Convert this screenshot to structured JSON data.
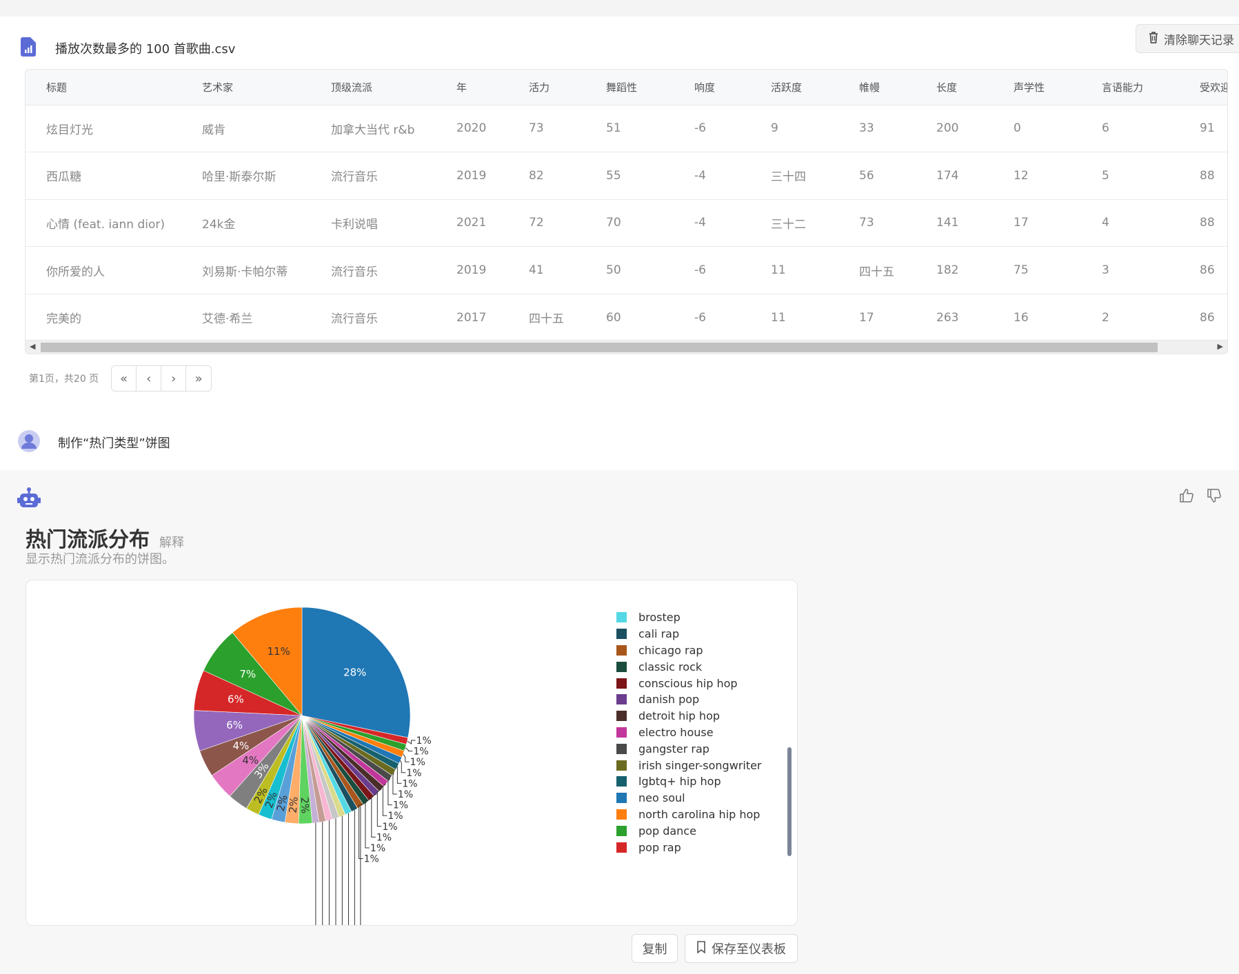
{
  "header": {
    "file_name": "播放次数最多的 100 首歌曲.csv",
    "clear_label": "清除聊天记录"
  },
  "table": {
    "columns": [
      "标题",
      "艺术家",
      "顶级流派",
      "年",
      "活力",
      "舞蹈性",
      "响度",
      "活跃度",
      "帷幔",
      "长度",
      "声学性",
      "言语能力",
      "受欢迎"
    ],
    "rows": [
      [
        "炫目灯光",
        "威肯",
        "加拿大当代 r&b",
        "2020",
        "73",
        "51",
        "-6",
        "9",
        "33",
        "200",
        "0",
        "6",
        "91"
      ],
      [
        "西瓜糖",
        "哈里·斯泰尔斯",
        "流行音乐",
        "2019",
        "82",
        "55",
        "-4",
        "三十四",
        "56",
        "174",
        "12",
        "5",
        "88"
      ],
      [
        "心情 (feat. iann dior)",
        "24k金",
        "卡利说唱",
        "2021",
        "72",
        "70",
        "-4",
        "三十二",
        "73",
        "141",
        "17",
        "4",
        "88"
      ],
      [
        "你所爱的人",
        "刘易斯·卡帕尔蒂",
        "流行音乐",
        "2019",
        "41",
        "50",
        "-6",
        "11",
        "四十五",
        "182",
        "75",
        "3",
        "86"
      ],
      [
        "完美的",
        "艾德·希兰",
        "流行音乐",
        "2017",
        "四十五",
        "60",
        "-6",
        "11",
        "17",
        "263",
        "16",
        "2",
        "86"
      ]
    ]
  },
  "pager": {
    "text": "第1页，共20 页"
  },
  "user": {
    "message": "制作“热门类型”饼图"
  },
  "chart": {
    "title": "热门流派分布",
    "explain": "解释",
    "description": "显示热门流派分布的饼图。",
    "copy_label": "复制",
    "save_label": "保存至仪表板"
  },
  "chart_data": {
    "type": "pie",
    "title": "热门流派分布",
    "slices": [
      {
        "label": "28%",
        "value": 28,
        "color": "#1f77b4"
      },
      {
        "label": "1%",
        "value": 1,
        "color": "#d62728"
      },
      {
        "label": "1%",
        "value": 1,
        "color": "#2ca02c"
      },
      {
        "label": "1%",
        "value": 1,
        "color": "#ff7f0e"
      },
      {
        "label": "1%",
        "value": 1,
        "color": "#1f77b4"
      },
      {
        "label": "1%",
        "value": 1,
        "color": "#17606e"
      },
      {
        "label": "1%",
        "value": 1,
        "color": "#6b6b1f"
      },
      {
        "label": "1%",
        "value": 1,
        "color": "#4a4a4a"
      },
      {
        "label": "1%",
        "value": 1,
        "color": "#c2379c"
      },
      {
        "label": "1%",
        "value": 1,
        "color": "#4b2e2a"
      },
      {
        "label": "1%",
        "value": 1,
        "color": "#6a3d8f"
      },
      {
        "label": "1%",
        "value": 1,
        "color": "#7b1518"
      },
      {
        "label": "1%",
        "value": 1,
        "color": "#1b4d3e"
      },
      {
        "label": "1%",
        "value": 1,
        "color": "#a8561b"
      },
      {
        "label": "1%",
        "value": 1,
        "color": "#1b5061"
      },
      {
        "label": "1%",
        "value": 1,
        "color": "#53d8e4"
      },
      {
        "label": "1%",
        "value": 1,
        "color": "#dbdb8d"
      },
      {
        "label": "1%",
        "value": 1,
        "color": "#c7c7c7"
      },
      {
        "label": "1%",
        "value": 1,
        "color": "#f7b6d2"
      },
      {
        "label": "1%",
        "value": 1,
        "color": "#c49c94"
      },
      {
        "label": "1%",
        "value": 1,
        "color": "#c5b0d5"
      },
      {
        "label": "2%",
        "value": 2,
        "color": "#5fd35f"
      },
      {
        "label": "2%",
        "value": 2,
        "color": "#ffad68"
      },
      {
        "label": "2%",
        "value": 2,
        "color": "#5aa0d8"
      },
      {
        "label": "2%",
        "value": 2,
        "color": "#17becf"
      },
      {
        "label": "2%",
        "value": 2,
        "color": "#bcbd22"
      },
      {
        "label": "3%",
        "value": 3,
        "color": "#7f7f7f"
      },
      {
        "label": "4%",
        "value": 4,
        "color": "#e377c2"
      },
      {
        "label": "4%",
        "value": 4,
        "color": "#8c564b"
      },
      {
        "label": "6%",
        "value": 6,
        "color": "#9467bd"
      },
      {
        "label": "6%",
        "value": 6,
        "color": "#d62728"
      },
      {
        "label": "7%",
        "value": 7,
        "color": "#2ca02c"
      },
      {
        "label": "11%",
        "value": 11,
        "color": "#ff7f0e"
      }
    ],
    "legend": [
      {
        "name": "brostep",
        "color": "#53d8e4"
      },
      {
        "name": "cali rap",
        "color": "#1b5061"
      },
      {
        "name": "chicago rap",
        "color": "#a8561b"
      },
      {
        "name": "classic rock",
        "color": "#1b4d3e"
      },
      {
        "name": "conscious hip hop",
        "color": "#7b1518"
      },
      {
        "name": "danish pop",
        "color": "#6a3d8f"
      },
      {
        "name": "detroit hip hop",
        "color": "#4b2e2a"
      },
      {
        "name": "electro house",
        "color": "#c2379c"
      },
      {
        "name": "gangster rap",
        "color": "#4a4a4a"
      },
      {
        "name": "irish singer-songwriter",
        "color": "#6b6b1f"
      },
      {
        "name": "lgbtq+ hip hop",
        "color": "#17606e"
      },
      {
        "name": "neo soul",
        "color": "#1f77b4"
      },
      {
        "name": "north carolina hip hop",
        "color": "#ff7f0e"
      },
      {
        "name": "pop dance",
        "color": "#2ca02c"
      },
      {
        "name": "pop rap",
        "color": "#d62728"
      }
    ]
  }
}
